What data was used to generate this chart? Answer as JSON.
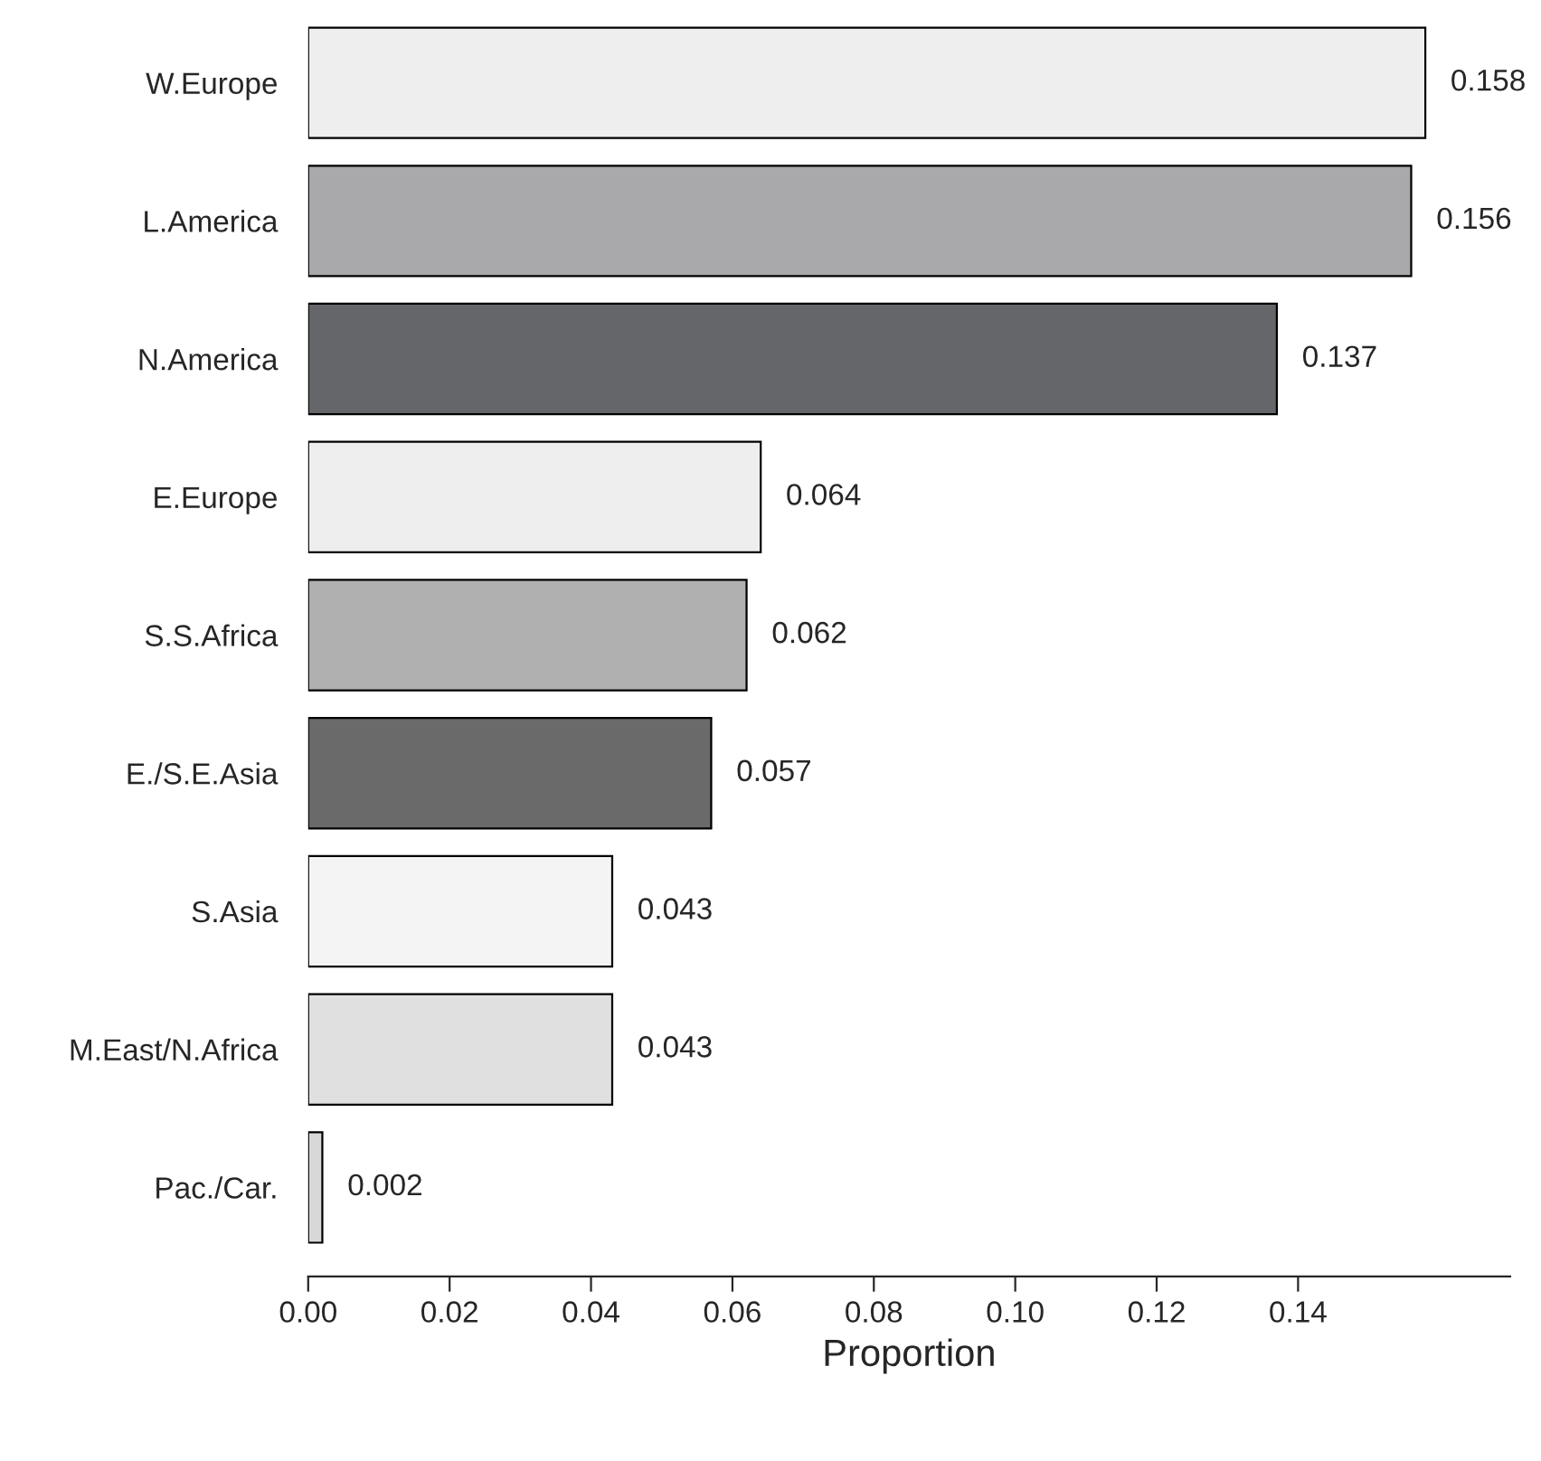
{
  "chart_data": {
    "type": "bar",
    "orientation": "horizontal",
    "xlabel": "Proportion",
    "categories": [
      "W.Europe",
      "L.America",
      "N.America",
      "E.Europe",
      "S.S.Africa",
      "E./S.E.Asia",
      "S.Asia",
      "M.East/N.Africa",
      "Pac./Car."
    ],
    "values": [
      0.158,
      0.156,
      0.137,
      0.064,
      0.062,
      0.057,
      0.043,
      0.043,
      0.002
    ],
    "colors": [
      "#eeeeee",
      "#a9a9ab",
      "#656669",
      "#eeeeee",
      "#b0b0b0",
      "#6a6a6a",
      "#f4f4f4",
      "#e0e0e0",
      "#d8d8d8"
    ],
    "xlim": [
      0,
      0.17
    ],
    "xticks": [
      {
        "value": 0,
        "label": "0.00"
      },
      {
        "value": 0.02,
        "label": "0.02"
      },
      {
        "value": 0.04,
        "label": "0.04"
      },
      {
        "value": 0.06,
        "label": "0.06"
      },
      {
        "value": 0.08,
        "label": "0.08"
      },
      {
        "value": 0.1,
        "label": "0.10"
      },
      {
        "value": 0.12,
        "label": "0.12"
      },
      {
        "value": 0.14,
        "label": "0.14"
      }
    ],
    "data_labels": true,
    "grid": false,
    "legend": false
  }
}
